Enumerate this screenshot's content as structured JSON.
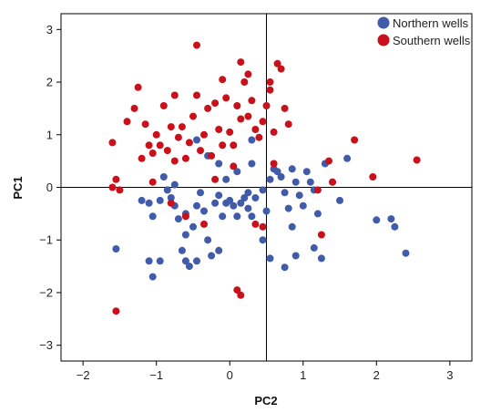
{
  "chart_data": {
    "type": "scatter",
    "title": "",
    "xlabel": "PC2",
    "ylabel": "PC1",
    "xlim": [
      -2.3,
      3.3
    ],
    "ylim": [
      -3.3,
      3.3
    ],
    "xticks": [
      -2,
      -1,
      0,
      1,
      2,
      3
    ],
    "yticks": [
      -3,
      -2,
      -1,
      0,
      1,
      2,
      3
    ],
    "xtick_labels": [
      "−2",
      "−1",
      "0",
      "1",
      "2",
      "3"
    ],
    "ytick_labels": [
      "−3",
      "−2",
      "−1",
      "0",
      "1",
      "2",
      "3"
    ],
    "reference_lines": {
      "x": 0.5,
      "y": 0
    },
    "grid": false,
    "legend_position": "top-right",
    "series": [
      {
        "name": "Northern wells",
        "color": "#3F5BA9",
        "points": [
          [
            -1.55,
            -1.17
          ],
          [
            -1.2,
            -0.25
          ],
          [
            -1.1,
            -0.3
          ],
          [
            -1.05,
            -0.55
          ],
          [
            -0.95,
            -0.25
          ],
          [
            -0.9,
            0.2
          ],
          [
            -0.85,
            -0.05
          ],
          [
            -0.8,
            -0.2
          ],
          [
            -0.75,
            -0.35
          ],
          [
            -0.7,
            -0.6
          ],
          [
            -0.6,
            -0.5
          ],
          [
            -0.5,
            -0.75
          ],
          [
            -0.45,
            -0.35
          ],
          [
            -0.35,
            -0.45
          ],
          [
            -0.3,
            -1.0
          ],
          [
            -0.2,
            -0.3
          ],
          [
            -0.15,
            -0.15
          ],
          [
            -0.1,
            -0.55
          ],
          [
            -0.05,
            -0.3
          ],
          [
            0.0,
            -0.25
          ],
          [
            0.05,
            -0.35
          ],
          [
            0.1,
            -0.55
          ],
          [
            0.15,
            -0.3
          ],
          [
            0.2,
            -0.2
          ],
          [
            0.25,
            -0.4
          ],
          [
            0.3,
            -0.55
          ],
          [
            0.35,
            -0.2
          ],
          [
            0.45,
            -0.05
          ],
          [
            0.5,
            -0.45
          ],
          [
            0.6,
            0.35
          ],
          [
            0.65,
            0.3
          ],
          [
            0.7,
            0.2
          ],
          [
            0.75,
            -0.1
          ],
          [
            0.8,
            -0.4
          ],
          [
            0.85,
            -0.75
          ],
          [
            0.9,
            0.1
          ],
          [
            0.95,
            -0.15
          ],
          [
            1.0,
            -0.35
          ],
          [
            1.05,
            0.3
          ],
          [
            1.1,
            0.1
          ],
          [
            1.15,
            -0.05
          ],
          [
            1.2,
            -0.5
          ],
          [
            1.3,
            0.45
          ],
          [
            1.4,
            0.1
          ],
          [
            1.5,
            -0.25
          ],
          [
            1.6,
            0.55
          ],
          [
            0.3,
            0.45
          ],
          [
            0.1,
            0.3
          ],
          [
            -0.05,
            0.15
          ],
          [
            -0.15,
            0.45
          ],
          [
            -0.3,
            0.6
          ],
          [
            -0.45,
            0.9
          ],
          [
            -1.05,
            -1.7
          ],
          [
            -1.1,
            -1.4
          ],
          [
            -0.95,
            -1.4
          ],
          [
            -0.6,
            -1.4
          ],
          [
            -0.55,
            -1.5
          ],
          [
            -0.45,
            -1.4
          ],
          [
            -0.25,
            -1.3
          ],
          [
            -0.15,
            -1.2
          ],
          [
            -0.65,
            -1.2
          ],
          [
            0.45,
            -1.0
          ],
          [
            0.55,
            -1.35
          ],
          [
            0.9,
            -1.3
          ],
          [
            1.25,
            -1.35
          ],
          [
            1.15,
            -1.15
          ],
          [
            2.0,
            -0.62
          ],
          [
            2.2,
            -0.6
          ],
          [
            2.25,
            -0.75
          ],
          [
            2.4,
            -1.25
          ],
          [
            -0.75,
            0.05
          ],
          [
            -0.4,
            -0.1
          ],
          [
            0.25,
            -0.1
          ],
          [
            0.85,
            0.35
          ],
          [
            0.55,
            0.15
          ],
          [
            0.75,
            -1.52
          ],
          [
            0.3,
            0.9
          ],
          [
            -0.6,
            -0.9
          ]
        ]
      },
      {
        "name": "Southern wells",
        "color": "#C8111A",
        "points": [
          [
            -1.6,
            0.0
          ],
          [
            -1.55,
            0.15
          ],
          [
            -1.5,
            -0.05
          ],
          [
            -1.6,
            0.85
          ],
          [
            -1.4,
            1.25
          ],
          [
            -1.3,
            1.5
          ],
          [
            -1.25,
            1.9
          ],
          [
            -1.2,
            0.55
          ],
          [
            -1.15,
            1.2
          ],
          [
            -1.1,
            0.8
          ],
          [
            -1.05,
            0.65
          ],
          [
            -1.0,
            1.0
          ],
          [
            -0.95,
            0.8
          ],
          [
            -0.9,
            1.55
          ],
          [
            -0.85,
            0.7
          ],
          [
            -0.8,
            1.15
          ],
          [
            -0.75,
            0.5
          ],
          [
            -0.7,
            0.95
          ],
          [
            -0.65,
            1.15
          ],
          [
            -0.6,
            0.55
          ],
          [
            -0.55,
            0.85
          ],
          [
            -0.5,
            1.35
          ],
          [
            -0.45,
            1.75
          ],
          [
            -0.4,
            0.7
          ],
          [
            -0.35,
            1.0
          ],
          [
            -0.3,
            1.5
          ],
          [
            -0.25,
            0.6
          ],
          [
            -0.2,
            1.6
          ],
          [
            -0.15,
            1.1
          ],
          [
            -0.1,
            0.8
          ],
          [
            -0.05,
            1.7
          ],
          [
            0.0,
            1.05
          ],
          [
            0.05,
            0.4
          ],
          [
            0.1,
            1.55
          ],
          [
            0.15,
            1.3
          ],
          [
            0.2,
            2.0
          ],
          [
            0.25,
            1.35
          ],
          [
            0.3,
            1.65
          ],
          [
            0.35,
            1.1
          ],
          [
            0.4,
            0.95
          ],
          [
            0.45,
            1.25
          ],
          [
            0.5,
            1.55
          ],
          [
            0.55,
            1.85
          ],
          [
            0.6,
            1.05
          ],
          [
            0.65,
            2.35
          ],
          [
            0.7,
            2.25
          ],
          [
            0.75,
            1.5
          ],
          [
            0.8,
            1.2
          ],
          [
            -0.45,
            2.7
          ],
          [
            0.15,
            2.38
          ],
          [
            -0.1,
            2.05
          ],
          [
            0.25,
            2.15
          ],
          [
            0.55,
            2.0
          ],
          [
            -1.05,
            0.1
          ],
          [
            -0.8,
            -0.3
          ],
          [
            -0.6,
            -0.55
          ],
          [
            -0.35,
            -0.7
          ],
          [
            0.1,
            -1.95
          ],
          [
            0.15,
            -2.05
          ],
          [
            0.35,
            -0.7
          ],
          [
            0.45,
            -0.75
          ],
          [
            1.25,
            -0.9
          ],
          [
            1.2,
            -0.05
          ],
          [
            1.35,
            0.5
          ],
          [
            1.4,
            0.1
          ],
          [
            1.7,
            0.9
          ],
          [
            1.95,
            0.2
          ],
          [
            2.55,
            0.52
          ],
          [
            -1.55,
            -2.35
          ],
          [
            -0.2,
            0.15
          ],
          [
            0.05,
            0.8
          ],
          [
            0.6,
            0.45
          ],
          [
            -0.75,
            1.75
          ]
        ]
      }
    ]
  }
}
